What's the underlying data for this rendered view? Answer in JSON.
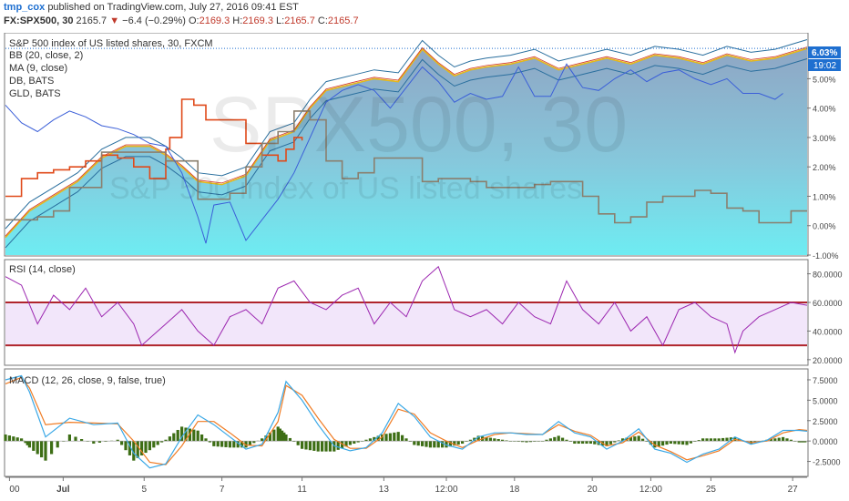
{
  "header": {
    "author": "tmp_cox",
    "published": "published on TradingView.com, July 27, 2016 09:41 EST",
    "symbol": "FX:SPX500, 30",
    "last": "2165.7",
    "change_arrow": "▼",
    "change": "−6.4 (−0.29%)",
    "o_label": "O:",
    "o": "2169.3",
    "h_label": "H:",
    "h": "2169.3",
    "l_label": "L:",
    "l": "2165.7",
    "c_label": "C:",
    "c": "2165.7"
  },
  "price_pane": {
    "title": "S&P 500 index of US listed shares, 30, FXCM",
    "indicators": [
      "BB (20, close, 2)",
      "MA (9, close)",
      "DB, BATS",
      "GLD, BATS"
    ],
    "watermark_big": "SPX500, 30",
    "watermark_small": "S&P 500 index of US listed shares",
    "last_value_badge": "6.03%",
    "time_badge": "19:02",
    "y_ticks": [
      "5.00%",
      "4.00%",
      "3.00%",
      "2.00%",
      "1.00%",
      "0.00%",
      "-1.00%"
    ]
  },
  "rsi_pane": {
    "title": "RSI (14, close)",
    "y_ticks": [
      "80.0000",
      "60.0000",
      "40.0000",
      "20.0000"
    ]
  },
  "macd_pane": {
    "title": "MACD (12, 26, close, 9, false, true)",
    "y_ticks": [
      "7.5000",
      "5.0000",
      "2.5000",
      "0.0000",
      "-2.5000"
    ]
  },
  "x_ticks": [
    "00",
    "Jul",
    "5",
    "7",
    "11",
    "13",
    "12:00",
    "18",
    "20",
    "12:00",
    "25",
    "27"
  ],
  "colors": {
    "accent": "#1e6fd0",
    "price_fill_top": "#8fa6c4",
    "price_fill_bottom": "#6eecf2",
    "dbline": "#e04a1a",
    "gldline": "#8a7f6e",
    "refline": "#3b5fd8",
    "rsi": "#9c27b0",
    "rsi_band": "#f2e6fa",
    "rsi_bounds": "#b0252c",
    "macd": "#3aa8e6",
    "signal": "#f07c24",
    "hist": "#3d6e15"
  },
  "chart_data": [
    {
      "type": "area",
      "title": "S&P 500 index of US listed shares, 30, FXCM",
      "y_unit": "%",
      "ylim": [
        -1.0,
        6.5
      ],
      "x_ticks": [
        "00",
        "Jul",
        "5",
        "7",
        "11",
        "13",
        "12:00",
        "18",
        "20",
        "12:00",
        "25",
        "27"
      ],
      "series": [
        {
          "name": "S&P 500 index of US listed shares",
          "x": [
            0,
            3,
            6,
            9,
            12,
            15,
            18,
            20,
            22,
            24,
            27,
            30,
            33,
            36,
            38,
            40,
            43,
            46,
            49,
            52,
            54,
            56,
            58,
            60,
            63,
            66,
            69,
            72,
            75,
            78,
            81,
            84,
            87,
            90,
            93,
            96,
            100
          ],
          "values": [
            -0.4,
            0.5,
            1.0,
            1.5,
            2.3,
            2.7,
            2.7,
            2.4,
            2.0,
            1.5,
            1.4,
            1.7,
            2.9,
            3.2,
            4.0,
            4.6,
            4.8,
            5.0,
            4.9,
            6.0,
            5.5,
            5.1,
            5.3,
            5.4,
            5.5,
            5.7,
            5.3,
            5.5,
            5.7,
            5.5,
            5.8,
            5.7,
            5.5,
            5.8,
            5.6,
            5.7,
            6.03
          ]
        },
        {
          "name": "DB, BATS",
          "x": [
            0,
            2,
            4,
            6,
            8,
            10,
            12,
            14,
            16,
            18,
            20,
            20.5,
            22,
            23.5,
            25,
            26.5,
            28,
            30,
            32,
            34,
            35,
            36,
            37
          ],
          "values": [
            1.0,
            1.6,
            1.8,
            1.9,
            2.0,
            2.2,
            2.4,
            2.3,
            2.0,
            1.6,
            2.6,
            3.0,
            4.3,
            4.1,
            3.6,
            3.6,
            3.6,
            2.8,
            2.4,
            2.2,
            2.6,
            3.0,
            2.9
          ]
        },
        {
          "name": "GLD, BATS",
          "x": [
            0,
            4,
            6,
            8,
            12,
            16,
            20,
            24,
            26,
            28,
            30,
            32,
            34,
            36,
            38,
            40,
            42,
            44,
            46,
            48,
            50,
            52,
            54,
            56,
            58,
            60,
            62,
            64,
            66,
            68,
            70,
            72,
            74,
            76,
            78,
            80,
            82,
            84,
            86,
            88,
            90,
            92,
            94,
            96,
            98,
            100
          ],
          "values": [
            0.2,
            0.3,
            0.5,
            1.3,
            2.5,
            2.5,
            2.2,
            0.9,
            0.9,
            1.1,
            2.0,
            2.8,
            3.2,
            3.9,
            3.6,
            2.2,
            1.6,
            1.8,
            2.3,
            2.3,
            2.3,
            1.5,
            1.6,
            1.6,
            1.5,
            1.3,
            1.3,
            1.3,
            1.4,
            1.5,
            1.5,
            1.0,
            0.4,
            0.1,
            0.3,
            0.8,
            1.0,
            1.0,
            1.2,
            1.1,
            0.6,
            0.5,
            0.1,
            0.1,
            0.5,
            0.5
          ]
        },
        {
          "name": "",
          "x": [
            0,
            2,
            4,
            6,
            8,
            10,
            12,
            14,
            16,
            18,
            20,
            22,
            24,
            25,
            26,
            28,
            30,
            32,
            34,
            36,
            38,
            40,
            42,
            44,
            46,
            48,
            50,
            52,
            54,
            56,
            58,
            60,
            62,
            64,
            66,
            68,
            70,
            72,
            74,
            76,
            78,
            80,
            82,
            84,
            86,
            88,
            90,
            92,
            94,
            96,
            97
          ],
          "values": [
            4.1,
            3.5,
            3.2,
            3.6,
            3.9,
            3.7,
            3.4,
            3.3,
            3.1,
            2.8,
            2.7,
            1.8,
            0.3,
            -0.6,
            0.7,
            0.8,
            -0.5,
            0.2,
            0.9,
            1.8,
            3.0,
            4.2,
            4.6,
            4.8,
            4.6,
            4.0,
            4.7,
            5.4,
            4.9,
            4.2,
            4.5,
            4.3,
            4.4,
            5.4,
            4.4,
            4.4,
            5.5,
            4.7,
            4.6,
            5.0,
            5.3,
            4.9,
            5.2,
            5.3,
            5.0,
            4.8,
            5.0,
            4.5,
            4.5,
            4.3,
            4.5
          ]
        }
      ]
    },
    {
      "type": "line",
      "title": "RSI (14, close)",
      "ylim": [
        18,
        88
      ],
      "bands": [
        30,
        60
      ],
      "series": [
        {
          "name": "RSI (14, close)",
          "x": [
            0,
            2,
            4,
            6,
            8,
            10,
            12,
            14,
            16,
            17,
            18,
            20,
            22,
            24,
            26,
            28,
            30,
            32,
            34,
            36,
            38,
            40,
            42,
            44,
            46,
            48,
            50,
            52,
            54,
            56,
            58,
            60,
            62,
            64,
            66,
            68,
            70,
            72,
            74,
            76,
            78,
            80,
            82,
            84,
            86,
            88,
            90,
            91,
            92,
            94,
            96,
            98,
            100
          ],
          "values": [
            78,
            72,
            45,
            65,
            55,
            70,
            50,
            60,
            45,
            30,
            35,
            45,
            55,
            40,
            30,
            50,
            55,
            45,
            70,
            75,
            60,
            55,
            65,
            70,
            45,
            60,
            50,
            75,
            85,
            55,
            50,
            55,
            45,
            60,
            50,
            45,
            75,
            55,
            45,
            60,
            40,
            50,
            30,
            55,
            60,
            50,
            45,
            25,
            40,
            50,
            55,
            60,
            58
          ]
        }
      ]
    },
    {
      "type": "line",
      "title": "MACD (12, 26, close, 9, false, true)",
      "ylim": [
        -4,
        8.5
      ],
      "series": [
        {
          "name": "MACD",
          "x": [
            0,
            2,
            3,
            5,
            8,
            11,
            14,
            16,
            18,
            20,
            22,
            24,
            26,
            28,
            30,
            32,
            34,
            35,
            37,
            39,
            41,
            43,
            45,
            47,
            49,
            51,
            53,
            55,
            57,
            59,
            61,
            63,
            65,
            67,
            69,
            71,
            73,
            75,
            77,
            79,
            81,
            83,
            85,
            87,
            89,
            91,
            93,
            95,
            97,
            99,
            100
          ],
          "values": [
            7.5,
            8.0,
            6.0,
            0.5,
            2.8,
            2.0,
            2.2,
            -1.5,
            -3.3,
            -2.8,
            0.5,
            3.2,
            2.0,
            0.5,
            -1.0,
            -0.4,
            3.5,
            7.3,
            5.0,
            2.0,
            -0.6,
            -1.2,
            -0.8,
            1.0,
            4.6,
            3.0,
            0.5,
            -0.5,
            -1.0,
            0.5,
            1.0,
            1.0,
            0.8,
            0.8,
            2.4,
            1.0,
            0.5,
            -1.0,
            0.0,
            1.5,
            -1.0,
            -1.5,
            -2.6,
            -1.6,
            -1.0,
            0.5,
            -0.4,
            0.1,
            1.3,
            1.3,
            1.2
          ]
        },
        {
          "name": "Signal",
          "x": [
            0,
            2,
            3,
            5,
            8,
            11,
            14,
            16,
            18,
            20,
            22,
            24,
            26,
            28,
            30,
            32,
            34,
            35,
            37,
            39,
            41,
            43,
            45,
            47,
            49,
            51,
            53,
            55,
            57,
            59,
            61,
            63,
            65,
            67,
            69,
            71,
            73,
            75,
            77,
            79,
            81,
            83,
            85,
            87,
            89,
            91,
            93,
            95,
            97,
            99,
            100
          ],
          "values": [
            7.0,
            7.8,
            6.5,
            2.0,
            2.3,
            2.2,
            2.1,
            0.0,
            -2.6,
            -2.9,
            -0.6,
            2.4,
            2.4,
            1.0,
            -0.5,
            -0.6,
            2.4,
            6.8,
            5.6,
            2.8,
            0.2,
            -0.9,
            -0.9,
            0.5,
            3.9,
            3.3,
            1.0,
            0.0,
            -0.8,
            0.1,
            0.8,
            1.0,
            0.9,
            0.8,
            2.0,
            1.2,
            0.7,
            -0.6,
            -0.2,
            1.1,
            -0.5,
            -1.3,
            -2.3,
            -1.8,
            -1.2,
            0.2,
            -0.2,
            0.0,
            1.0,
            1.4,
            1.3
          ]
        }
      ]
    }
  ]
}
